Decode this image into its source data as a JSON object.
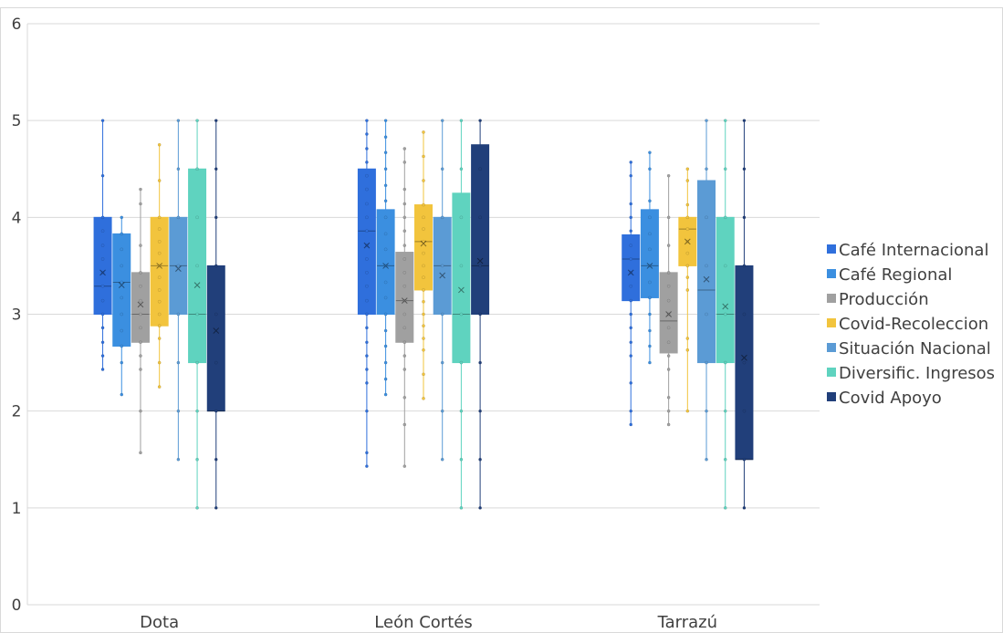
{
  "chart_data": {
    "type": "boxplot",
    "title": "",
    "xlabel": "",
    "ylabel": "",
    "ylim": [
      0,
      6
    ],
    "yticks": [
      "0",
      "1",
      "2",
      "3",
      "4",
      "5",
      "6"
    ],
    "categories": [
      "Dota",
      "León Cortés",
      "Tarrazú"
    ],
    "legend_position": "right",
    "grid": true,
    "series": [
      {
        "name": "Café Internacional",
        "color": "#2f6fdc",
        "boxes": [
          {
            "min": 2.43,
            "q1": 3.0,
            "median": 3.29,
            "q3": 4.0,
            "max": 5.0,
            "mean": 3.43,
            "points": [
              2.43,
              2.57,
              2.71,
              2.86,
              3.0,
              3.14,
              3.29,
              3.43,
              3.57,
              3.71,
              3.86,
              4.0,
              4.43,
              5.0
            ]
          },
          {
            "min": 1.43,
            "q1": 3.0,
            "median": 3.86,
            "q3": 4.5,
            "max": 5.0,
            "mean": 3.71,
            "points": [
              1.43,
              1.57,
              2.0,
              2.29,
              2.43,
              2.57,
              2.71,
              2.86,
              3.0,
              3.14,
              3.29,
              3.43,
              3.57,
              3.71,
              3.86,
              4.0,
              4.14,
              4.29,
              4.43,
              4.57,
              4.71,
              4.86,
              5.0
            ]
          },
          {
            "min": 1.86,
            "q1": 3.14,
            "median": 3.57,
            "q3": 3.82,
            "max": 4.57,
            "mean": 3.43,
            "points": [
              1.86,
              2.0,
              2.29,
              2.57,
              2.71,
              2.86,
              3.0,
              3.14,
              3.29,
              3.43,
              3.57,
              3.71,
              3.86,
              4.0,
              4.14,
              4.43,
              4.57
            ]
          }
        ]
      },
      {
        "name": "Café Regional",
        "color": "#3b8fe0",
        "boxes": [
          {
            "min": 2.17,
            "q1": 2.67,
            "median": 3.33,
            "q3": 3.83,
            "max": 4.0,
            "mean": 3.3,
            "points": [
              2.17,
              2.5,
              2.67,
              2.83,
              3.0,
              3.17,
              3.33,
              3.5,
              3.67,
              3.83,
              4.0
            ]
          },
          {
            "min": 2.17,
            "q1": 3.0,
            "median": 3.5,
            "q3": 4.08,
            "max": 5.0,
            "mean": 3.5,
            "points": [
              2.17,
              2.33,
              2.5,
              2.67,
              2.83,
              3.0,
              3.17,
              3.33,
              3.5,
              3.67,
              3.83,
              4.0,
              4.17,
              4.33,
              4.5,
              4.67,
              4.83,
              5.0
            ]
          },
          {
            "min": 2.5,
            "q1": 3.17,
            "median": 3.5,
            "q3": 4.08,
            "max": 4.67,
            "mean": 3.5,
            "points": [
              2.5,
              2.67,
              2.83,
              3.0,
              3.17,
              3.33,
              3.5,
              3.67,
              3.83,
              4.0,
              4.17,
              4.5,
              4.67
            ]
          }
        ]
      },
      {
        "name": "Producción",
        "color": "#a0a0a0",
        "boxes": [
          {
            "min": 1.57,
            "q1": 2.71,
            "median": 3.0,
            "q3": 3.43,
            "max": 4.29,
            "mean": 3.1,
            "points": [
              1.57,
              2.0,
              2.43,
              2.57,
              2.71,
              2.86,
              3.0,
              3.14,
              3.29,
              3.43,
              3.71,
              4.14,
              4.29
            ]
          },
          {
            "min": 1.43,
            "q1": 2.71,
            "median": 3.14,
            "q3": 3.64,
            "max": 4.71,
            "mean": 3.14,
            "points": [
              1.43,
              1.86,
              2.14,
              2.43,
              2.57,
              2.71,
              2.86,
              3.0,
              3.14,
              3.29,
              3.43,
              3.57,
              3.71,
              3.86,
              4.0,
              4.14,
              4.29,
              4.57,
              4.71
            ]
          },
          {
            "min": 1.86,
            "q1": 2.6,
            "median": 2.93,
            "q3": 3.43,
            "max": 4.43,
            "mean": 3.0,
            "points": [
              1.86,
              2.0,
              2.14,
              2.43,
              2.57,
              2.71,
              2.86,
              3.0,
              3.14,
              3.29,
              3.43,
              3.71,
              4.0,
              4.43
            ]
          }
        ]
      },
      {
        "name": "Covid-Recoleccion",
        "color": "#f2c43d",
        "boxes": [
          {
            "min": 2.25,
            "q1": 2.88,
            "median": 3.5,
            "q3": 4.0,
            "max": 4.75,
            "mean": 3.5,
            "points": [
              2.25,
              2.5,
              2.75,
              2.88,
              3.0,
              3.13,
              3.25,
              3.38,
              3.5,
              3.63,
              3.75,
              3.88,
              4.0,
              4.38,
              4.75
            ]
          },
          {
            "min": 2.13,
            "q1": 3.25,
            "median": 3.75,
            "q3": 4.13,
            "max": 4.88,
            "mean": 3.73,
            "points": [
              2.13,
              2.38,
              2.63,
              2.75,
              2.88,
              3.0,
              3.13,
              3.25,
              3.38,
              3.5,
              3.63,
              3.75,
              3.88,
              4.0,
              4.13,
              4.38,
              4.63,
              4.88
            ]
          },
          {
            "min": 2.0,
            "q1": 3.5,
            "median": 3.88,
            "q3": 4.0,
            "max": 4.5,
            "mean": 3.75,
            "points": [
              2.0,
              2.63,
              2.75,
              3.25,
              3.38,
              3.5,
              3.63,
              3.75,
              3.88,
              4.0,
              4.13,
              4.38,
              4.5
            ]
          }
        ]
      },
      {
        "name": "Situación Nacional",
        "color": "#5b9bd5",
        "boxes": [
          {
            "min": 1.5,
            "q1": 3.0,
            "median": 3.5,
            "q3": 4.0,
            "max": 5.0,
            "mean": 3.47,
            "points": [
              1.5,
              2.0,
              2.5,
              3.0,
              3.5,
              4.0,
              4.5,
              5.0
            ]
          },
          {
            "min": 1.5,
            "q1": 3.0,
            "median": 3.5,
            "q3": 4.0,
            "max": 5.0,
            "mean": 3.4,
            "points": [
              1.5,
              2.0,
              2.5,
              3.0,
              3.5,
              4.0,
              4.5,
              5.0
            ]
          },
          {
            "min": 1.5,
            "q1": 2.5,
            "median": 3.25,
            "q3": 4.38,
            "max": 5.0,
            "mean": 3.36,
            "points": [
              1.5,
              2.0,
              2.5,
              3.0,
              3.5,
              4.0,
              4.5,
              5.0
            ]
          }
        ]
      },
      {
        "name": "Diversific. Ingresos",
        "color": "#5fd3bf",
        "boxes": [
          {
            "min": 1.0,
            "q1": 2.5,
            "median": 3.0,
            "q3": 4.5,
            "max": 5.0,
            "mean": 3.3,
            "points": [
              1.0,
              1.5,
              2.0,
              2.5,
              3.0,
              3.5,
              4.0,
              4.5,
              5.0
            ]
          },
          {
            "min": 1.0,
            "q1": 2.5,
            "median": 3.0,
            "q3": 4.25,
            "max": 5.0,
            "mean": 3.25,
            "points": [
              1.0,
              1.5,
              2.0,
              2.5,
              3.0,
              3.5,
              4.0,
              4.5,
              5.0
            ]
          },
          {
            "min": 1.0,
            "q1": 2.5,
            "median": 3.0,
            "q3": 4.0,
            "max": 5.0,
            "mean": 3.08,
            "points": [
              1.0,
              1.5,
              2.0,
              2.5,
              3.0,
              3.5,
              4.0,
              4.5,
              5.0
            ]
          }
        ]
      },
      {
        "name": "Covid Apoyo",
        "color": "#213f7a",
        "boxes": [
          {
            "min": 1.0,
            "q1": 2.0,
            "median": 2.0,
            "q3": 3.5,
            "max": 5.0,
            "mean": 2.83,
            "points": [
              1.0,
              1.5,
              2.0,
              2.5,
              3.0,
              3.5,
              4.0,
              4.5,
              5.0
            ]
          },
          {
            "min": 1.0,
            "q1": 3.0,
            "median": 3.5,
            "q3": 4.75,
            "max": 5.0,
            "mean": 3.55,
            "points": [
              1.0,
              1.5,
              2.0,
              2.5,
              3.0,
              3.5,
              4.0,
              4.5,
              5.0
            ]
          },
          {
            "min": 1.0,
            "q1": 1.5,
            "median": 1.5,
            "q3": 3.5,
            "max": 5.0,
            "mean": 2.55,
            "points": [
              1.0,
              1.5,
              2.0,
              2.5,
              3.0,
              3.5,
              4.0,
              4.5,
              5.0
            ]
          }
        ]
      }
    ]
  }
}
